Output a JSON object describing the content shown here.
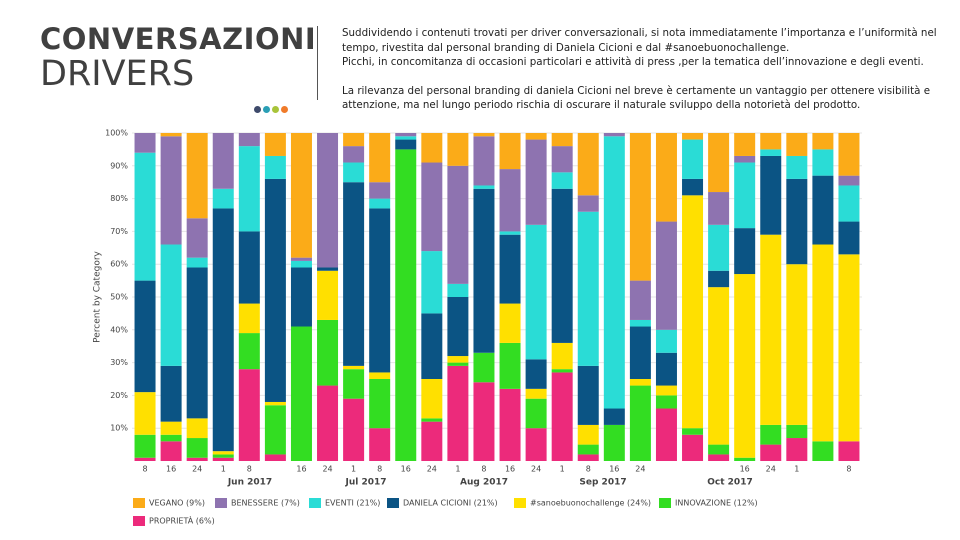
{
  "header": {
    "title": "CONVERSAZIONI",
    "subtitle": "DRIVERS"
  },
  "text": {
    "paragraphs": [
      [
        "Suddividendo i contenuti trovati per driver conversazionali, si nota immediatamente l’importanza e l’uniformità nel",
        "tempo, rivestita dal personal branding di Daniela Cicioni e dal #sanoebuonochallenge.",
        "Picchi, in concomitanza di occasioni particolari e attività di press ,per la tematica dell’innovazione e degli eventi."
      ],
      [
        "La rilevanza del personal branding di daniela Cicioni nel breve è certamente un vantaggio per ottenere visibilità e",
        "attenzione, ma nel lungo periodo rischia di oscurare il naturale sviluppo della notorietà del prodotto."
      ]
    ]
  },
  "chart_data": {
    "type": "stacked_bar",
    "y_label": "Percent by Category",
    "categories": [
      "8",
      "16",
      "24",
      "1",
      "8",
      null,
      "16",
      "24",
      "1",
      "8",
      "16",
      "24",
      "1",
      "8",
      "16",
      "24",
      "1",
      "8",
      "16",
      "24",
      null,
      null,
      null,
      "16",
      "24",
      "1",
      null,
      "8"
    ],
    "months": [
      "Jun 2017",
      "Jul 2017",
      "Aug 2017",
      "Sep 2017",
      "Oct 2017"
    ],
    "ylim": [
      0,
      100
    ],
    "yticks": [
      {
        "value": 10,
        "label": "10%"
      },
      {
        "value": 20,
        "label": "20%"
      },
      {
        "value": 30,
        "label": "30%"
      },
      {
        "value": 40,
        "label": "40%"
      },
      {
        "value": 50,
        "label": "50%"
      },
      {
        "value": 60,
        "label": "60%"
      },
      {
        "value": 70,
        "label": "70%"
      },
      {
        "value": 80,
        "label": "80%"
      },
      {
        "value": 90,
        "label": "90%"
      },
      {
        "value": 100,
        "label": "100%"
      }
    ],
    "grid": true,
    "series": [
      {
        "name": "VEGANO (9%)",
        "color": "#fbab18",
        "values": [
          0,
          1,
          26,
          0,
          0,
          7,
          38,
          0,
          4,
          15,
          0,
          9,
          10,
          1,
          11,
          2,
          4,
          19,
          0,
          45,
          27,
          2,
          18,
          7,
          5,
          7,
          5,
          13
        ]
      },
      {
        "name": "BENESSERE (7%)",
        "color": "#8e73b0",
        "values": [
          6,
          33,
          12,
          17,
          4,
          0,
          1,
          41,
          5,
          5,
          1,
          27,
          36,
          15,
          19,
          26,
          8,
          5,
          1,
          12,
          33,
          0,
          10,
          2,
          0,
          0,
          0,
          3
        ]
      },
      {
        "name": "EVENTI (21%)",
        "color": "#2adcd6",
        "values": [
          39,
          37,
          3,
          6,
          26,
          7,
          2,
          0,
          6,
          3,
          1,
          19,
          4,
          1,
          1,
          41,
          5,
          47,
          83,
          2,
          7,
          12,
          14,
          20,
          2,
          7,
          8,
          11
        ]
      },
      {
        "name": "DANIELA CICIONI (21%)",
        "color": "#0b5484",
        "values": [
          34,
          17,
          46,
          74,
          22,
          68,
          18,
          1,
          56,
          50,
          3,
          20,
          18,
          50,
          21,
          9,
          47,
          18,
          5,
          16,
          10,
          5,
          5,
          14,
          24,
          26,
          21,
          10
        ]
      },
      {
        "name": "#sanoebuonochallenge (24%)",
        "color": "#ffe000",
        "values": [
          13,
          4,
          6,
          1,
          9,
          1,
          0,
          15,
          1,
          2,
          0,
          12,
          2,
          0,
          12,
          3,
          8,
          6,
          0,
          2,
          3,
          71,
          48,
          56,
          58,
          49,
          60,
          57
        ]
      },
      {
        "name": "INNOVAZIONE (12%)",
        "color": "#33dd22",
        "values": [
          7,
          2,
          6,
          1,
          11,
          15,
          41,
          20,
          9,
          15,
          95,
          1,
          1,
          9,
          14,
          9,
          1,
          3,
          11,
          23,
          4,
          2,
          3,
          1,
          6,
          4,
          6,
          0
        ]
      },
      {
        "name": "PROPRIETÀ (6%)",
        "color": "#ec2a7b",
        "values": [
          1,
          6,
          1,
          1,
          28,
          2,
          0,
          23,
          19,
          10,
          0,
          12,
          29,
          24,
          22,
          10,
          27,
          2,
          0,
          0,
          16,
          8,
          2,
          0,
          5,
          7,
          0,
          6
        ]
      }
    ]
  }
}
